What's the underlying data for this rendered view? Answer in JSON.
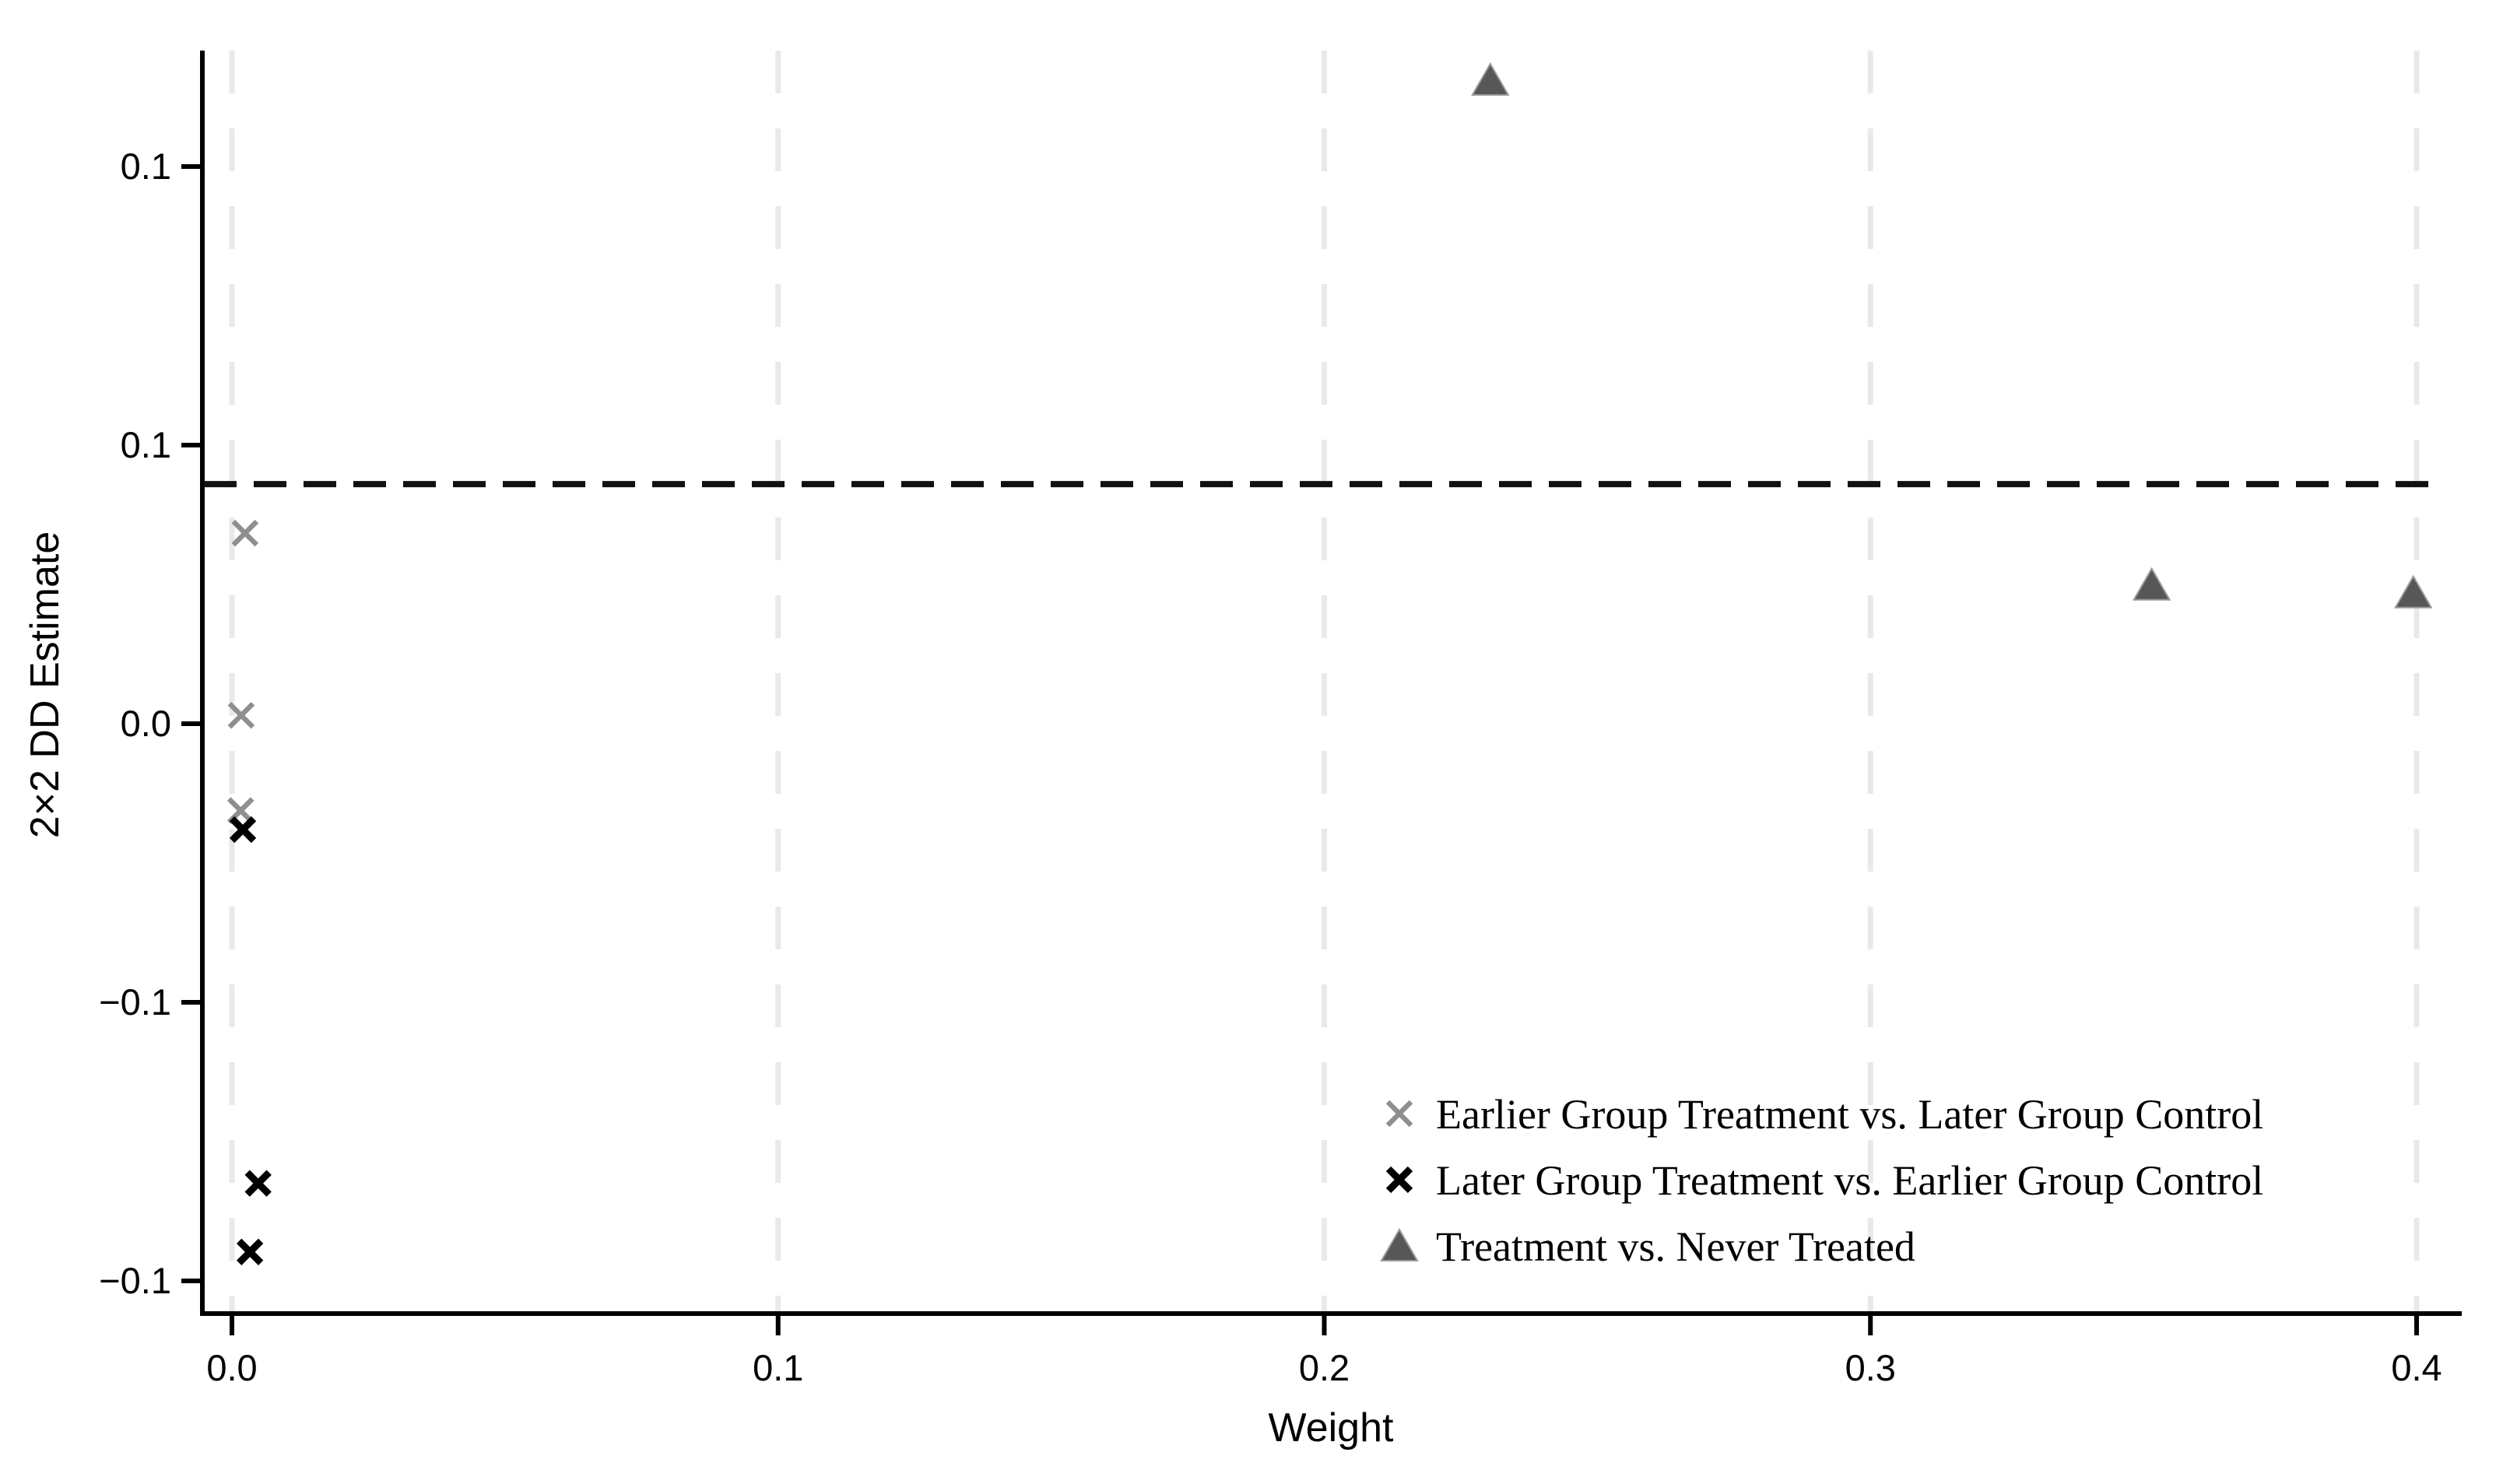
{
  "figure": {
    "background": "#ffffff"
  },
  "chart_data": {
    "type": "scatter",
    "title": "",
    "xlabel": "Weight",
    "ylabel": "2×2 DD Estimate",
    "xlim": [
      -0.005,
      0.408
    ],
    "ylim": [
      -0.106,
      0.121
    ],
    "grid": "vertical-dashed-only",
    "legend_position": "inside-bottom-right",
    "x_ticks": [
      {
        "value": 0.0,
        "label": "0.0"
      },
      {
        "value": 0.1,
        "label": "0.1"
      },
      {
        "value": 0.2,
        "label": "0.2"
      },
      {
        "value": 0.3,
        "label": "0.3"
      },
      {
        "value": 0.4,
        "label": "0.4"
      }
    ],
    "y_ticks": [
      {
        "value": 0.1,
        "label": "0.1"
      },
      {
        "value": 0.05,
        "label": "0.1"
      },
      {
        "value": 0.0,
        "label": "0.0"
      },
      {
        "value": -0.05,
        "label": "−0.1"
      },
      {
        "value": -0.1,
        "label": "−0.1"
      }
    ],
    "reference_line": {
      "y": 0.043,
      "style": "dashed",
      "color": "#111111"
    },
    "series": [
      {
        "name": "Earlier Group Treatment vs. Later Group Control",
        "marker": "x",
        "color": "#8f8f8f",
        "points": [
          [
            0.0024,
            0.0342
          ],
          [
            0.0017,
            0.0015
          ],
          [
            0.0016,
            -0.0156
          ]
        ]
      },
      {
        "name": "Later Group Treatment vs. Earlier Group Control",
        "marker": "x-bold",
        "color": "#000000",
        "points": [
          [
            0.002,
            -0.019
          ],
          [
            0.0048,
            -0.0825
          ],
          [
            0.0033,
            -0.0948
          ]
        ]
      },
      {
        "name": "Treatment vs. Never Treated",
        "marker": "triangle",
        "color": "#575757",
        "marker_edge_color": "#9a9a9a",
        "points": [
          [
            0.2304,
            0.1155
          ],
          [
            0.3515,
            0.0249
          ],
          [
            0.3994,
            0.0235
          ]
        ]
      }
    ],
    "colors": {
      "gridline": "#e9e9e9",
      "axis": "#000000",
      "reference_line": "#111111"
    }
  }
}
